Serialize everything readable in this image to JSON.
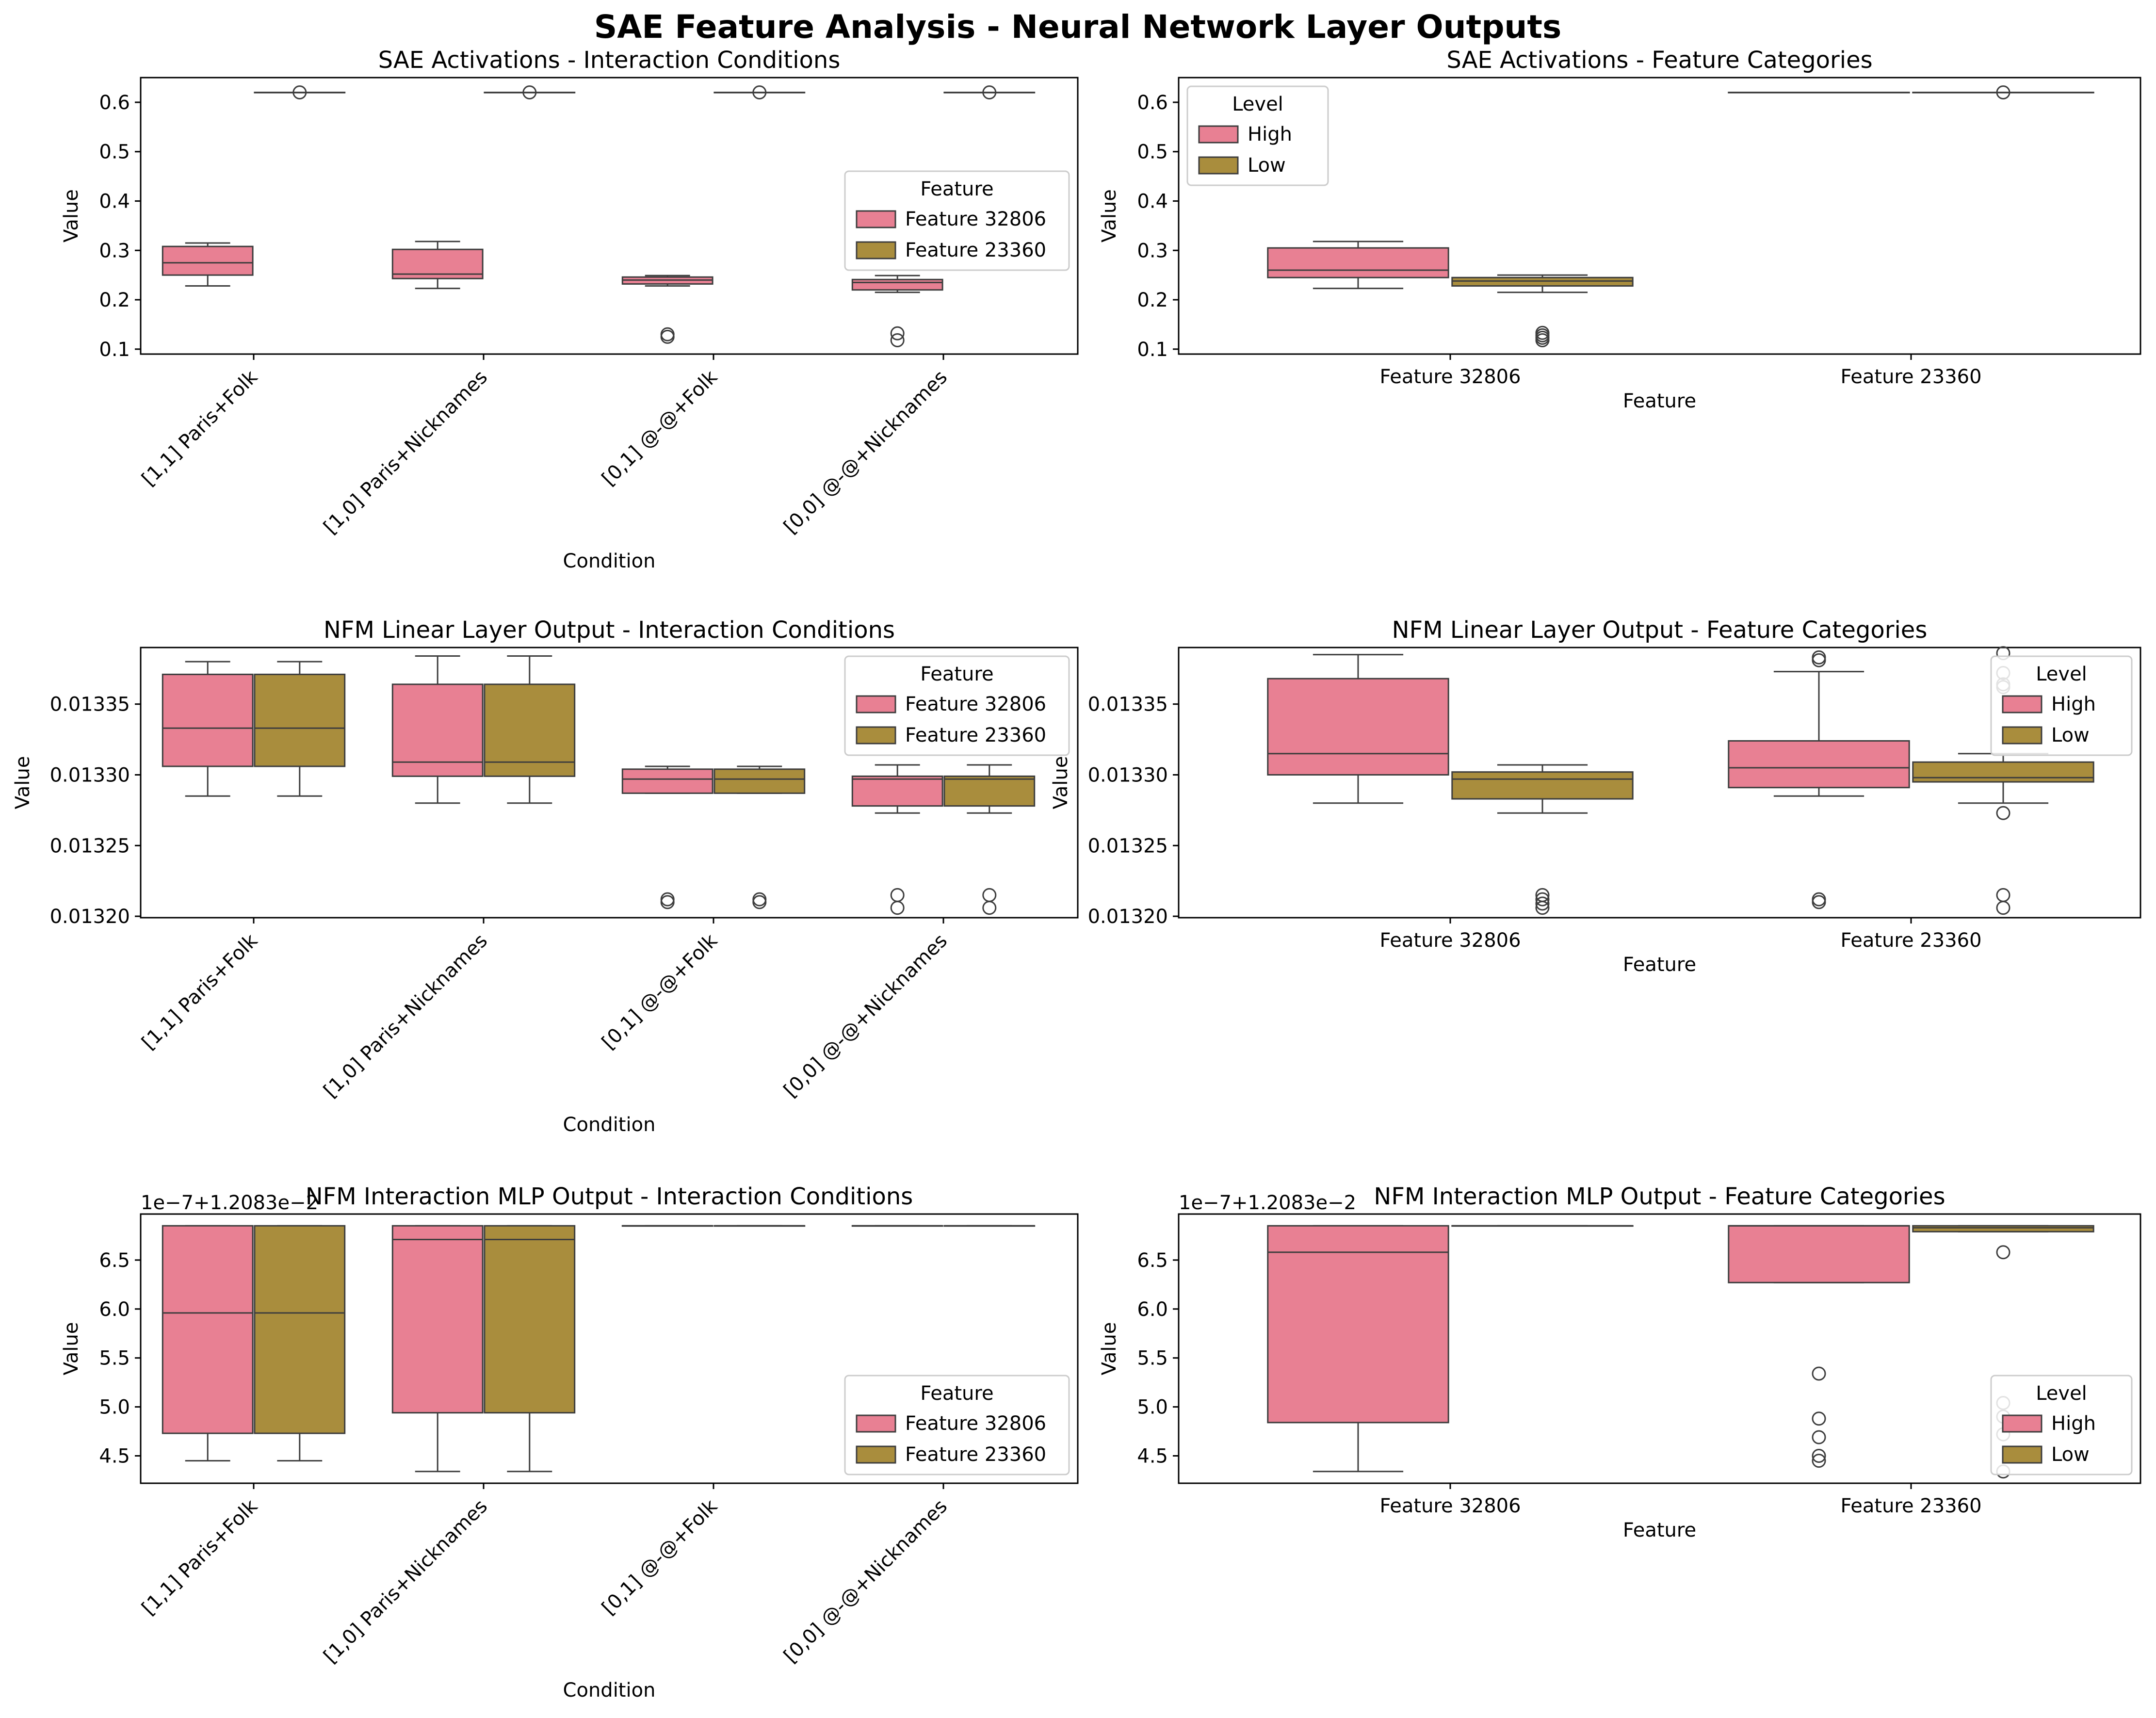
{
  "suptitle": "SAE Feature Analysis - Neural Network Layer Outputs",
  "colors": {
    "feature_a": "#e88093",
    "feature_b": "#a98d3d",
    "box_edge": "#3d3d3d"
  },
  "chart_data": [
    {
      "type": "box",
      "title": "SAE Activations - Interaction Conditions",
      "xlabel": "Condition",
      "ylabel": "Value",
      "categories": [
        "[1,1] Paris+Folk",
        "[1,0] Paris+Nicknames",
        "[0,1] @-@+Folk",
        "[0,0] @-@+Nicknames"
      ],
      "ylim": [
        0.09,
        0.65
      ],
      "yticks": [
        0.1,
        0.2,
        0.3,
        0.4,
        0.5,
        0.6
      ],
      "yticklabels": [
        "0.1",
        "0.2",
        "0.3",
        "0.4",
        "0.5",
        "0.6"
      ],
      "legend": {
        "title": "Feature",
        "position": "center-right",
        "entries": [
          "Feature 32806",
          "Feature 23360"
        ]
      },
      "series": [
        {
          "name": "Feature 32806",
          "boxes": [
            {
              "whislo": 0.228,
              "q1": 0.25,
              "med": 0.275,
              "q3": 0.308,
              "whishi": 0.315,
              "fliers": []
            },
            {
              "whislo": 0.223,
              "q1": 0.243,
              "med": 0.252,
              "q3": 0.302,
              "whishi": 0.318,
              "fliers": []
            },
            {
              "whislo": 0.228,
              "q1": 0.232,
              "med": 0.24,
              "q3": 0.246,
              "whishi": 0.249,
              "fliers": [
                0.125,
                0.13
              ]
            },
            {
              "whislo": 0.215,
              "q1": 0.22,
              "med": 0.235,
              "q3": 0.241,
              "whishi": 0.249,
              "fliers": [
                0.118,
                0.132
              ]
            }
          ]
        },
        {
          "name": "Feature 23360",
          "boxes": [
            {
              "whislo": 0.62,
              "q1": 0.62,
              "med": 0.62,
              "q3": 0.62,
              "whishi": 0.62,
              "fliers": [
                0.62
              ]
            },
            {
              "whislo": 0.62,
              "q1": 0.62,
              "med": 0.62,
              "q3": 0.62,
              "whishi": 0.62,
              "fliers": [
                0.62
              ]
            },
            {
              "whislo": 0.62,
              "q1": 0.62,
              "med": 0.62,
              "q3": 0.62,
              "whishi": 0.62,
              "fliers": [
                0.62
              ]
            },
            {
              "whislo": 0.62,
              "q1": 0.62,
              "med": 0.62,
              "q3": 0.62,
              "whishi": 0.62,
              "fliers": [
                0.62
              ]
            }
          ]
        }
      ]
    },
    {
      "type": "box",
      "title": "SAE Activations - Feature Categories",
      "xlabel": "Feature",
      "ylabel": "Value",
      "categories": [
        "Feature 32806",
        "Feature 23360"
      ],
      "ylim": [
        0.09,
        0.65
      ],
      "yticks": [
        0.1,
        0.2,
        0.3,
        0.4,
        0.5,
        0.6
      ],
      "yticklabels": [
        "0.1",
        "0.2",
        "0.3",
        "0.4",
        "0.5",
        "0.6"
      ],
      "legend": {
        "title": "Level",
        "position": "upper-left",
        "entries": [
          "High",
          "Low"
        ]
      },
      "series": [
        {
          "name": "High",
          "boxes": [
            {
              "whislo": 0.223,
              "q1": 0.245,
              "med": 0.26,
              "q3": 0.305,
              "whishi": 0.318,
              "fliers": []
            },
            {
              "whislo": 0.62,
              "q1": 0.62,
              "med": 0.62,
              "q3": 0.62,
              "whishi": 0.62,
              "fliers": []
            }
          ]
        },
        {
          "name": "Low",
          "boxes": [
            {
              "whislo": 0.215,
              "q1": 0.228,
              "med": 0.238,
              "q3": 0.245,
              "whishi": 0.25,
              "fliers": [
                0.118,
                0.123,
                0.128,
                0.133
              ]
            },
            {
              "whislo": 0.62,
              "q1": 0.62,
              "med": 0.62,
              "q3": 0.62,
              "whishi": 0.62,
              "fliers": [
                0.62
              ]
            }
          ]
        }
      ]
    },
    {
      "type": "box",
      "title": "NFM Linear Layer Output - Interaction Conditions",
      "xlabel": "Condition",
      "ylabel": "Value",
      "categories": [
        "[1,1] Paris+Folk",
        "[1,0] Paris+Nicknames",
        "[0,1] @-@+Folk",
        "[0,0] @-@+Nicknames"
      ],
      "ylim": [
        0.013199,
        0.01339
      ],
      "yticks": [
        0.0132,
        0.01325,
        0.0133,
        0.01335
      ],
      "yticklabels": [
        "0.01320",
        "0.01325",
        "0.01330",
        "0.01335"
      ],
      "legend": {
        "title": "Feature",
        "position": "upper-right",
        "entries": [
          "Feature 32806",
          "Feature 23360"
        ]
      },
      "series": [
        {
          "name": "Feature 32806",
          "boxes": [
            {
              "whislo": 0.013285,
              "q1": 0.013306,
              "med": 0.013333,
              "q3": 0.013371,
              "whishi": 0.01338,
              "fliers": []
            },
            {
              "whislo": 0.01328,
              "q1": 0.013299,
              "med": 0.013309,
              "q3": 0.013364,
              "whishi": 0.013384,
              "fliers": []
            },
            {
              "whislo": 0.013287,
              "q1": 0.013287,
              "med": 0.013297,
              "q3": 0.013304,
              "whishi": 0.013306,
              "fliers": [
                0.01321,
                0.013212
              ]
            },
            {
              "whislo": 0.013273,
              "q1": 0.013278,
              "med": 0.013297,
              "q3": 0.013299,
              "whishi": 0.013307,
              "fliers": [
                0.013206,
                0.013215
              ]
            }
          ]
        },
        {
          "name": "Feature 23360",
          "boxes": [
            {
              "whislo": 0.013285,
              "q1": 0.013306,
              "med": 0.013333,
              "q3": 0.013371,
              "whishi": 0.01338,
              "fliers": []
            },
            {
              "whislo": 0.01328,
              "q1": 0.013299,
              "med": 0.013309,
              "q3": 0.013364,
              "whishi": 0.013384,
              "fliers": []
            },
            {
              "whislo": 0.013287,
              "q1": 0.013287,
              "med": 0.013297,
              "q3": 0.013304,
              "whishi": 0.013306,
              "fliers": [
                0.01321,
                0.013212
              ]
            },
            {
              "whislo": 0.013273,
              "q1": 0.013278,
              "med": 0.013297,
              "q3": 0.013299,
              "whishi": 0.013307,
              "fliers": [
                0.013206,
                0.013215
              ]
            }
          ]
        }
      ]
    },
    {
      "type": "box",
      "title": "NFM Linear Layer Output - Feature Categories",
      "xlabel": "Feature",
      "ylabel": "Value",
      "categories": [
        "Feature 32806",
        "Feature 23360"
      ],
      "ylim": [
        0.013199,
        0.01339
      ],
      "yticks": [
        0.0132,
        0.01325,
        0.0133,
        0.01335
      ],
      "yticklabels": [
        "0.01320",
        "0.01325",
        "0.01330",
        "0.01335"
      ],
      "legend": {
        "title": "Level",
        "position": "upper-right",
        "entries": [
          "High",
          "Low"
        ]
      },
      "series": [
        {
          "name": "High",
          "boxes": [
            {
              "whislo": 0.01328,
              "q1": 0.0133,
              "med": 0.013315,
              "q3": 0.013368,
              "whishi": 0.013385,
              "fliers": []
            },
            {
              "whislo": 0.013285,
              "q1": 0.013291,
              "med": 0.013305,
              "q3": 0.013324,
              "whishi": 0.013373,
              "fliers": [
                0.01321,
                0.013212,
                0.013381,
                0.013383
              ]
            }
          ]
        },
        {
          "name": "Low",
          "boxes": [
            {
              "whislo": 0.013273,
              "q1": 0.013283,
              "med": 0.013297,
              "q3": 0.013302,
              "whishi": 0.013307,
              "fliers": [
                0.013206,
                0.013209,
                0.013212,
                0.013215
              ]
            },
            {
              "whislo": 0.01328,
              "q1": 0.013295,
              "med": 0.013298,
              "q3": 0.013309,
              "whishi": 0.013315,
              "fliers": [
                0.013206,
                0.013215,
                0.013273,
                0.013362,
                0.013364,
                0.013372,
                0.013386
              ]
            }
          ]
        }
      ]
    },
    {
      "type": "box",
      "title": "NFM Interaction MLP Output - Interaction Conditions",
      "xlabel": "Condition",
      "ylabel": "Value",
      "offset_label": "1e−7+1.2083e−2",
      "categories": [
        "[1,1] Paris+Folk",
        "[1,0] Paris+Nicknames",
        "[0,1] @-@+Folk",
        "[0,0] @-@+Nicknames"
      ],
      "ylim": [
        4.22,
        6.97
      ],
      "yticks": [
        4.5,
        5.0,
        5.5,
        6.0,
        6.5
      ],
      "yticklabels": [
        "4.5",
        "5.0",
        "5.5",
        "6.0",
        "6.5"
      ],
      "legend": {
        "title": "Feature",
        "position": "lower-right",
        "entries": [
          "Feature 32806",
          "Feature 23360"
        ]
      },
      "series": [
        {
          "name": "Feature 32806",
          "boxes": [
            {
              "whislo": 4.45,
              "q1": 4.73,
              "med": 5.96,
              "q3": 6.85,
              "whishi": 6.85,
              "fliers": []
            },
            {
              "whislo": 4.34,
              "q1": 4.94,
              "med": 6.71,
              "q3": 6.85,
              "whishi": 6.85,
              "fliers": []
            },
            {
              "whislo": 6.85,
              "q1": 6.85,
              "med": 6.85,
              "q3": 6.85,
              "whishi": 6.85,
              "fliers": []
            },
            {
              "whislo": 6.85,
              "q1": 6.85,
              "med": 6.85,
              "q3": 6.85,
              "whishi": 6.85,
              "fliers": []
            }
          ]
        },
        {
          "name": "Feature 23360",
          "boxes": [
            {
              "whislo": 4.45,
              "q1": 4.73,
              "med": 5.96,
              "q3": 6.85,
              "whishi": 6.85,
              "fliers": []
            },
            {
              "whislo": 4.34,
              "q1": 4.94,
              "med": 6.71,
              "q3": 6.85,
              "whishi": 6.85,
              "fliers": []
            },
            {
              "whislo": 6.85,
              "q1": 6.85,
              "med": 6.85,
              "q3": 6.85,
              "whishi": 6.85,
              "fliers": []
            },
            {
              "whislo": 6.85,
              "q1": 6.85,
              "med": 6.85,
              "q3": 6.85,
              "whishi": 6.85,
              "fliers": []
            }
          ]
        }
      ]
    },
    {
      "type": "box",
      "title": "NFM Interaction MLP Output - Feature Categories",
      "xlabel": "Feature",
      "ylabel": "Value",
      "offset_label": "1e−7+1.2083e−2",
      "categories": [
        "Feature 32806",
        "Feature 23360"
      ],
      "ylim": [
        4.22,
        6.97
      ],
      "yticks": [
        4.5,
        5.0,
        5.5,
        6.0,
        6.5
      ],
      "yticklabels": [
        "4.5",
        "5.0",
        "5.5",
        "6.0",
        "6.5"
      ],
      "legend": {
        "title": "Level",
        "position": "lower-right",
        "entries": [
          "High",
          "Low"
        ]
      },
      "series": [
        {
          "name": "High",
          "boxes": [
            {
              "whislo": 4.34,
              "q1": 4.84,
              "med": 6.58,
              "q3": 6.85,
              "whishi": 6.85,
              "fliers": []
            },
            {
              "whislo": 6.27,
              "q1": 6.27,
              "med": 6.85,
              "q3": 6.85,
              "whishi": 6.85,
              "fliers": [
                4.45,
                4.5,
                4.69,
                4.88,
                5.34
              ]
            }
          ]
        },
        {
          "name": "Low",
          "boxes": [
            {
              "whislo": 6.85,
              "q1": 6.85,
              "med": 6.85,
              "q3": 6.85,
              "whishi": 6.85,
              "fliers": []
            },
            {
              "whislo": 6.79,
              "q1": 6.79,
              "med": 6.83,
              "q3": 6.85,
              "whishi": 6.85,
              "fliers": [
                4.34,
                4.72,
                4.9,
                5.04,
                6.58
              ]
            }
          ]
        }
      ]
    }
  ]
}
